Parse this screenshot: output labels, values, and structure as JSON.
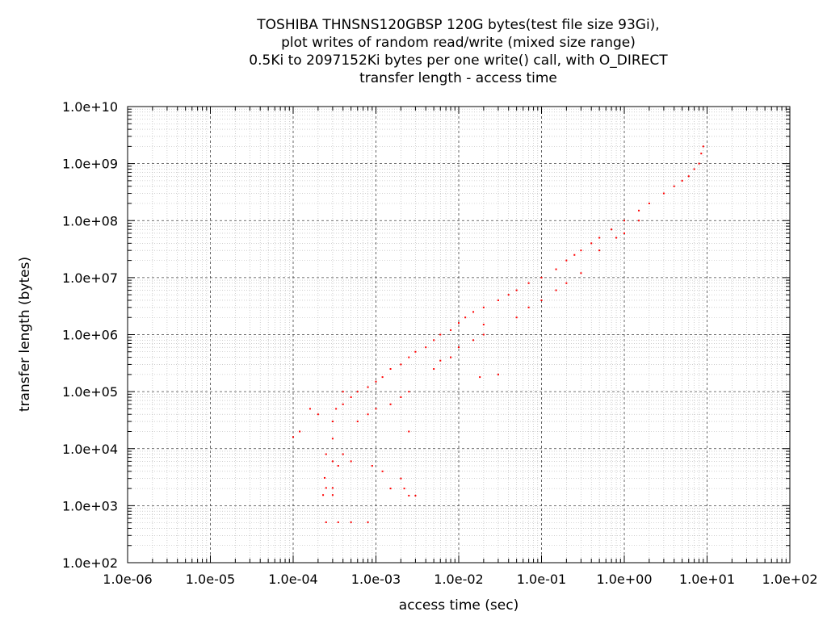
{
  "chart_data": {
    "type": "scatter",
    "title_lines": [
      "TOSHIBA THNSNS120GBSP 120G bytes(test file size 93Gi),",
      "plot writes of random read/write (mixed size range)",
      "0.5Ki to 2097152Ki bytes per one write() call, with O_DIRECT",
      "transfer length - access time"
    ],
    "xlabel": "access time (sec)",
    "ylabel": "transfer length (bytes)",
    "x_scale": "log",
    "y_scale": "log",
    "xlim": [
      1e-06,
      100
    ],
    "ylim": [
      100,
      10000000000.0
    ],
    "x_ticks": [
      "1.0e-06",
      "1.0e-05",
      "1.0e-04",
      "1.0e-03",
      "1.0e-02",
      "1.0e-01",
      "1.0e+00",
      "1.0e+01",
      "1.0e+02"
    ],
    "y_ticks": [
      "1.0e+02",
      "1.0e+03",
      "1.0e+04",
      "1.0e+05",
      "1.0e+06",
      "1.0e+07",
      "1.0e+08",
      "1.0e+09",
      "1.0e+10"
    ],
    "grid": true,
    "point_color": "#ff0000",
    "series": [
      {
        "points": [
          [
            0.00025,
            512
          ],
          [
            0.00035,
            512
          ],
          [
            0.0005,
            512
          ],
          [
            0.0008,
            512
          ],
          [
            0.00023,
            1536
          ],
          [
            0.00025,
            2048
          ],
          [
            0.0003,
            2048
          ],
          [
            0.00024,
            3072
          ],
          [
            0.0003,
            1536
          ],
          [
            0.0025,
            1500
          ],
          [
            0.003,
            1500
          ],
          [
            0.0022,
            2000
          ],
          [
            0.002,
            3000
          ],
          [
            0.0015,
            2000
          ],
          [
            0.00025,
            8000
          ],
          [
            0.0003,
            6000
          ],
          [
            0.00035,
            5000
          ],
          [
            0.0004,
            8000
          ],
          [
            0.0005,
            6000
          ],
          [
            0.0009,
            5000
          ],
          [
            0.0012,
            4000
          ],
          [
            0.0001,
            16000
          ],
          [
            0.00012,
            20000
          ],
          [
            0.00016,
            50000
          ],
          [
            0.0002,
            40000
          ],
          [
            0.0003,
            15000
          ],
          [
            0.0003,
            30000
          ],
          [
            0.00033,
            50000
          ],
          [
            0.0004,
            60000
          ],
          [
            0.0004,
            100000
          ],
          [
            0.0005,
            80000
          ],
          [
            0.0006,
            100000
          ],
          [
            0.0008,
            120000
          ],
          [
            0.001,
            150000
          ],
          [
            0.0012,
            180000
          ],
          [
            0.0006,
            30000
          ],
          [
            0.0008,
            40000
          ],
          [
            0.001,
            50000
          ],
          [
            0.0015,
            60000
          ],
          [
            0.002,
            80000
          ],
          [
            0.0025,
            20000
          ],
          [
            0.0025,
            100000
          ],
          [
            0.0015,
            250000
          ],
          [
            0.002,
            300000
          ],
          [
            0.0025,
            400000
          ],
          [
            0.003,
            500000
          ],
          [
            0.004,
            600000
          ],
          [
            0.005,
            800000
          ],
          [
            0.006,
            1000000
          ],
          [
            0.008,
            1200000
          ],
          [
            0.01,
            1600000
          ],
          [
            0.012,
            2000000
          ],
          [
            0.005,
            250000
          ],
          [
            0.006,
            350000
          ],
          [
            0.008,
            400000
          ],
          [
            0.01,
            600000
          ],
          [
            0.015,
            800000
          ],
          [
            0.02,
            1000000
          ],
          [
            0.03,
            200000
          ],
          [
            0.018,
            180000
          ],
          [
            0.02,
            1500000
          ],
          [
            0.015,
            2500000
          ],
          [
            0.02,
            3000000
          ],
          [
            0.03,
            4000000
          ],
          [
            0.04,
            5000000
          ],
          [
            0.05,
            6000000
          ],
          [
            0.07,
            8000000
          ],
          [
            0.1,
            10000000
          ],
          [
            0.15,
            14000000
          ],
          [
            0.2,
            20000000
          ],
          [
            0.25,
            25000000
          ],
          [
            0.05,
            2000000
          ],
          [
            0.07,
            3000000
          ],
          [
            0.1,
            4000000
          ],
          [
            0.15,
            6000000
          ],
          [
            0.2,
            8000000
          ],
          [
            0.3,
            12000000
          ],
          [
            0.3,
            30000000
          ],
          [
            0.4,
            40000000
          ],
          [
            0.5,
            50000000
          ],
          [
            0.7,
            70000000
          ],
          [
            1,
            100000000
          ],
          [
            1.5,
            150000000
          ],
          [
            2,
            200000000
          ],
          [
            3,
            300000000
          ],
          [
            4,
            400000000
          ],
          [
            5,
            500000000
          ],
          [
            6,
            600000000
          ],
          [
            0.5,
            30000000
          ],
          [
            0.8,
            50000000
          ],
          [
            1,
            60000000
          ],
          [
            1.5,
            100000000
          ],
          [
            7,
            800000000
          ],
          [
            8,
            1000000000
          ],
          [
            8.5,
            1500000000
          ],
          [
            9,
            2000000000
          ]
        ]
      }
    ]
  }
}
